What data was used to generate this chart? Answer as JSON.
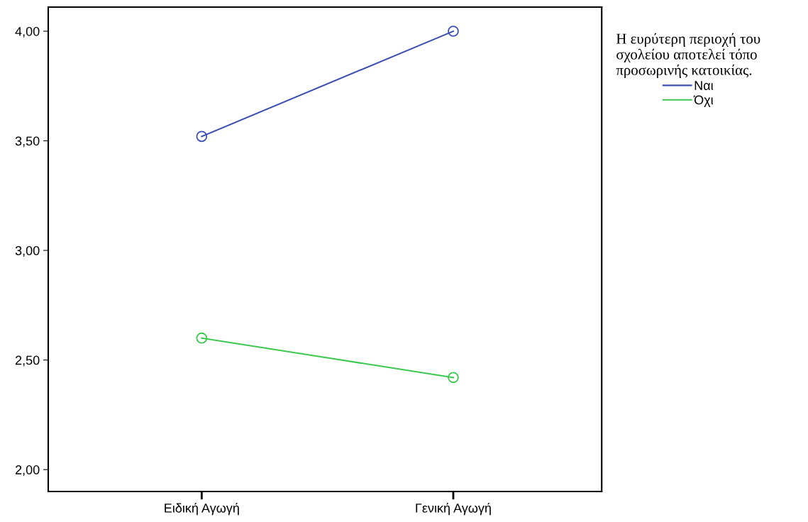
{
  "chart_data": {
    "type": "line",
    "categories": [
      "Ειδική Αγωγή",
      "Γενική Αγωγή"
    ],
    "series": [
      {
        "name": "Ναι",
        "color": "#3c50b4",
        "values": [
          3.52,
          4.0
        ]
      },
      {
        "name": "Όχι",
        "color": "#3cc850",
        "values": [
          2.6,
          2.42
        ]
      }
    ],
    "legend_title": "Η ευρύτερη περιοχή του\nσχολείου αποτελεί τόπο\nπροσωρινής κατοικίας.",
    "legend": "right",
    "marker": "circle",
    "line_style": "solid",
    "grid": false,
    "ylim": [
      1.9,
      4.11
    ],
    "yticks": [
      {
        "value": 2,
        "label": "2,00"
      },
      {
        "value": 2.5,
        "label": "2,50"
      },
      {
        "value": 3,
        "label": "3,00"
      },
      {
        "value": 3.5,
        "label": "3,50"
      },
      {
        "value": 4,
        "label": "4,00"
      }
    ]
  }
}
